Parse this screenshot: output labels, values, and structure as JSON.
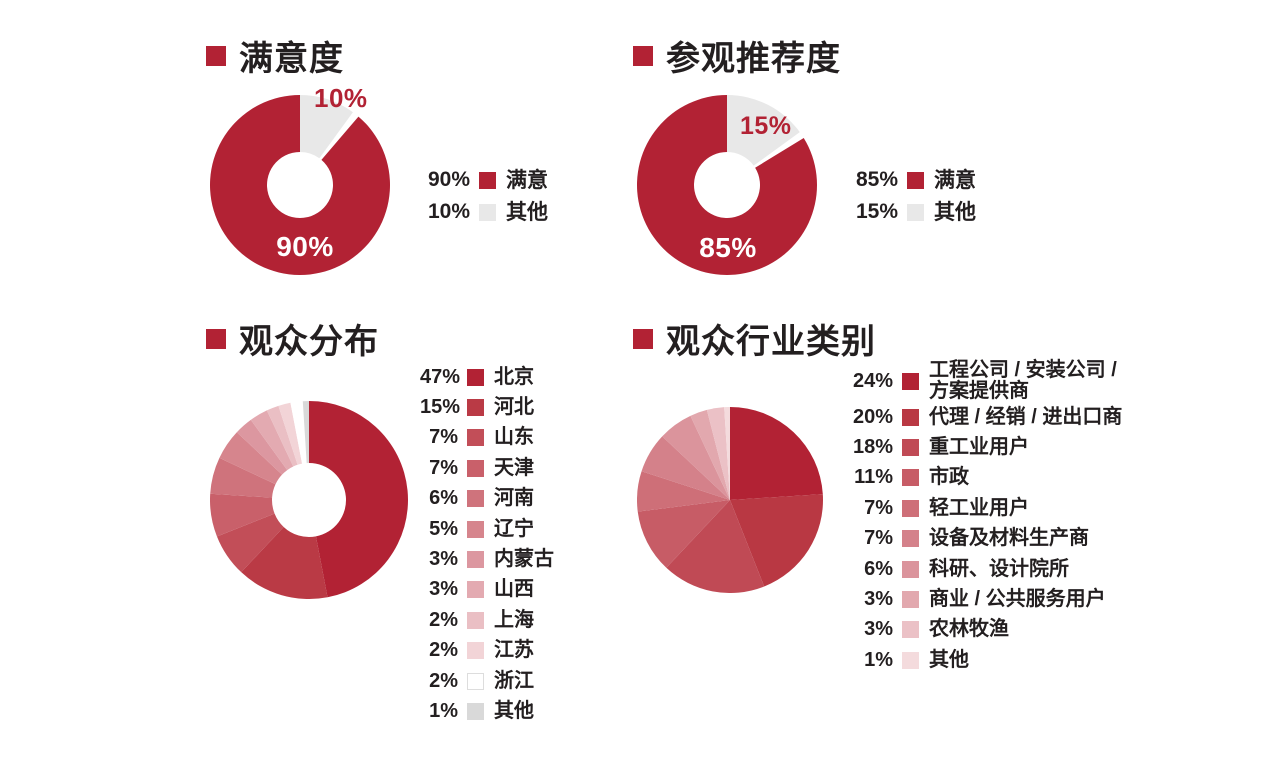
{
  "colors": {
    "primary_red": "#B22234",
    "slice_gray": "#E8E8E8",
    "text_dark": "#231F20",
    "white": "#FFFFFF"
  },
  "chart_data": [
    {
      "title": "满意度",
      "type": "donut",
      "slices_draw_order": [
        {
          "label": "其他",
          "value": 10,
          "color": "#E8E8E8"
        },
        {
          "label": "满意",
          "value": 90,
          "color": "#B22234",
          "gap_before_deg": 4.5
        }
      ],
      "legend": [
        {
          "pct": "90%",
          "label": "满意",
          "color": "#B22234"
        },
        {
          "pct": "10%",
          "label": "其他",
          "color": "#E8E8E8"
        }
      ],
      "callouts": [
        {
          "text": "10%",
          "color": "#B22234"
        },
        {
          "text": "90%",
          "color": "#FFFFFF"
        }
      ]
    },
    {
      "title": "参观推荐度",
      "type": "donut",
      "slices_draw_order": [
        {
          "label": "其他",
          "value": 15,
          "color": "#E8E8E8"
        },
        {
          "label": "满意",
          "value": 85,
          "color": "#B22234",
          "gap_before_deg": 4.5
        }
      ],
      "legend": [
        {
          "pct": "85%",
          "label": "满意",
          "color": "#B22234"
        },
        {
          "pct": "15%",
          "label": "其他",
          "color": "#E8E8E8"
        }
      ],
      "callouts": [
        {
          "text": "15%",
          "color": "#B22234"
        },
        {
          "text": "85%",
          "color": "#FFFFFF"
        }
      ]
    },
    {
      "title": "观众分布",
      "type": "donut",
      "slices_draw_order": [
        {
          "label": "北京",
          "value": 47,
          "color": "#B22234"
        },
        {
          "label": "河北",
          "value": 15,
          "color": "#BA3A45"
        },
        {
          "label": "山东",
          "value": 7,
          "color": "#C24E58"
        },
        {
          "label": "天津",
          "value": 7,
          "color": "#C9606A"
        },
        {
          "label": "河南",
          "value": 6,
          "color": "#CF737C"
        },
        {
          "label": "辽宁",
          "value": 5,
          "color": "#D6858D"
        },
        {
          "label": "内蒙古",
          "value": 3,
          "color": "#DC97A0"
        },
        {
          "label": "山西",
          "value": 3,
          "color": "#E3AAB1"
        },
        {
          "label": "上海",
          "value": 2,
          "color": "#EABFC4"
        },
        {
          "label": "江苏",
          "value": 2,
          "color": "#F2D4D7"
        },
        {
          "label": "浙江",
          "value": 2,
          "color": "#FFFFFF"
        },
        {
          "label": "其他",
          "value": 1,
          "color": "#D9D9D9"
        }
      ],
      "legend": [
        {
          "pct": "47%",
          "label": "北京",
          "color": "#B22234"
        },
        {
          "pct": "15%",
          "label": "河北",
          "color": "#BA3A45"
        },
        {
          "pct": "7%",
          "label": "山东",
          "color": "#C24E58"
        },
        {
          "pct": "7%",
          "label": "天津",
          "color": "#C9606A"
        },
        {
          "pct": "6%",
          "label": "河南",
          "color": "#CF737C"
        },
        {
          "pct": "5%",
          "label": "辽宁",
          "color": "#D6858D"
        },
        {
          "pct": "3%",
          "label": "内蒙古",
          "color": "#DC97A0"
        },
        {
          "pct": "3%",
          "label": "山西",
          "color": "#E3AAB1"
        },
        {
          "pct": "2%",
          "label": "上海",
          "color": "#EABFC4"
        },
        {
          "pct": "2%",
          "label": "江苏",
          "color": "#F2D4D7"
        },
        {
          "pct": "2%",
          "label": "浙江",
          "color": "#FFFFFF"
        },
        {
          "pct": "1%",
          "label": "其他",
          "color": "#D9D9D9"
        }
      ],
      "callouts": []
    },
    {
      "title": "观众行业类别",
      "type": "pie",
      "slices_draw_order": [
        {
          "label": "工程公司 / 安装公司 / 方案提供商",
          "value": 24,
          "color": "#B22234"
        },
        {
          "label": "代理 / 经销 / 进出口商",
          "value": 20,
          "color": "#B93843"
        },
        {
          "label": "重工业用户",
          "value": 18,
          "color": "#C04A55"
        },
        {
          "label": "市政",
          "value": 11,
          "color": "#C75C66"
        },
        {
          "label": "轻工业用户",
          "value": 7,
          "color": "#CE6F78"
        },
        {
          "label": "设备及材料生产商",
          "value": 7,
          "color": "#D4818A"
        },
        {
          "label": "科研、设计院所",
          "value": 6,
          "color": "#DB949C"
        },
        {
          "label": "商业 / 公共服务用户",
          "value": 3,
          "color": "#E2A8AE"
        },
        {
          "label": "农林牧渔",
          "value": 3,
          "color": "#EBC1C6"
        },
        {
          "label": "其他",
          "value": 1,
          "color": "#F4DBDD"
        }
      ],
      "legend": [
        {
          "pct": "24%",
          "label": "工程公司 / 安装公司 /\n方案提供商",
          "color": "#B22234"
        },
        {
          "pct": "20%",
          "label": "代理 / 经销 / 进出口商",
          "color": "#B93843"
        },
        {
          "pct": "18%",
          "label": "重工业用户",
          "color": "#C04A55"
        },
        {
          "pct": "11%",
          "label": "市政",
          "color": "#C75C66"
        },
        {
          "pct": "7%",
          "label": "轻工业用户",
          "color": "#CE6F78"
        },
        {
          "pct": "7%",
          "label": "设备及材料生产商",
          "color": "#D4818A"
        },
        {
          "pct": "6%",
          "label": "科研、设计院所",
          "color": "#DB949C"
        },
        {
          "pct": "3%",
          "label": "商业 / 公共服务用户",
          "color": "#E2A8AE"
        },
        {
          "pct": "3%",
          "label": "农林牧渔",
          "color": "#EBC1C6"
        },
        {
          "pct": "1%",
          "label": "其他",
          "color": "#F4DBDD"
        }
      ],
      "callouts": []
    }
  ]
}
